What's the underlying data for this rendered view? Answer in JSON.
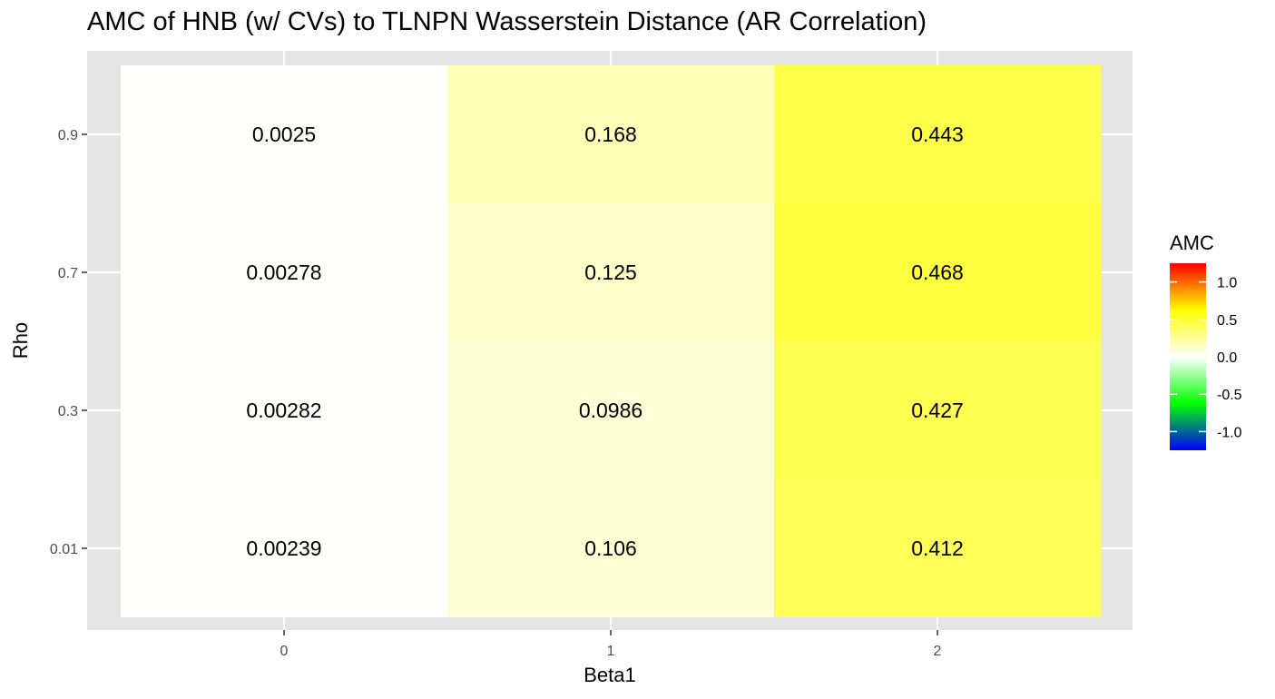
{
  "chart_data": {
    "type": "heatmap",
    "title": "AMC of HNB (w/ CVs) to TLNPN Wasserstein Distance (AR Correlation)",
    "xlabel": "Beta1",
    "ylabel": "Rho",
    "x_categories": [
      "0",
      "1",
      "2"
    ],
    "y_categories": [
      "0.01",
      "0.3",
      "0.7",
      "0.9"
    ],
    "cells": [
      {
        "x": "0",
        "y": "0.9",
        "value": 0.0025,
        "label": "0.0025"
      },
      {
        "x": "1",
        "y": "0.9",
        "value": 0.168,
        "label": "0.168"
      },
      {
        "x": "2",
        "y": "0.9",
        "value": 0.443,
        "label": "0.443"
      },
      {
        "x": "0",
        "y": "0.7",
        "value": 0.00278,
        "label": "0.00278"
      },
      {
        "x": "1",
        "y": "0.7",
        "value": 0.125,
        "label": "0.125"
      },
      {
        "x": "2",
        "y": "0.7",
        "value": 0.468,
        "label": "0.468"
      },
      {
        "x": "0",
        "y": "0.3",
        "value": 0.00282,
        "label": "0.00282"
      },
      {
        "x": "1",
        "y": "0.3",
        "value": 0.0986,
        "label": "0.0986"
      },
      {
        "x": "2",
        "y": "0.3",
        "value": 0.427,
        "label": "0.427"
      },
      {
        "x": "0",
        "y": "0.01",
        "value": 0.00239,
        "label": "0.00239"
      },
      {
        "x": "1",
        "y": "0.01",
        "value": 0.106,
        "label": "0.106"
      },
      {
        "x": "2",
        "y": "0.01",
        "value": 0.412,
        "label": "0.412"
      }
    ],
    "legend": {
      "title": "AMC",
      "range": [
        -1.25,
        1.25
      ],
      "ticks": [
        1.0,
        0.5,
        0.0,
        -0.5,
        -1.0
      ],
      "tick_labels": [
        "1.0",
        "0.5",
        "0.0",
        "-0.5",
        "-1.0"
      ],
      "colors": {
        "low": "#0000ff",
        "mid_low": "#00ff00",
        "mid": "#ffffff",
        "mid_high": "#ffff00",
        "high": "#ff0000"
      },
      "placement": "right"
    },
    "panel_background": "#e5e5e5",
    "grid": true
  }
}
